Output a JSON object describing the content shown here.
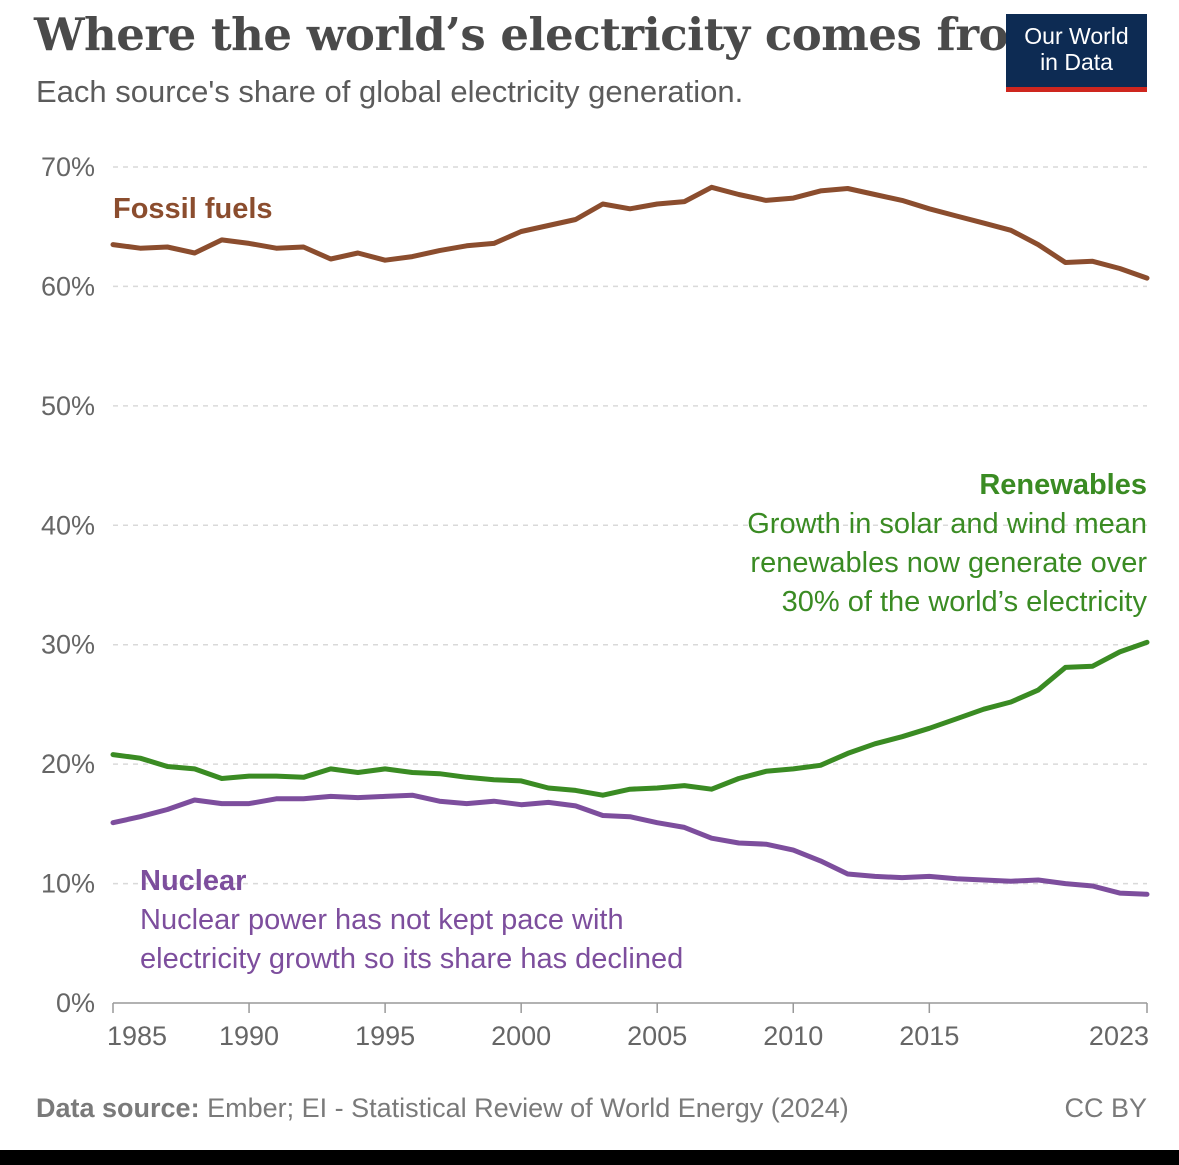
{
  "header": {
    "title": "Where the world’s electricity comes from",
    "subtitle": "Each source's share of global electricity generation."
  },
  "logo": {
    "line1": "Our World",
    "line2": "in Data",
    "bg_color": "#0d2b53",
    "accent_color": "#ce261e"
  },
  "footer": {
    "source_label": "Data source:",
    "source_text": " Ember; EI - Statistical Review of World Energy (2024)",
    "license": "CC BY"
  },
  "chart_data": {
    "type": "line",
    "x_start": 1985,
    "x_end": 2023,
    "ylim": [
      0,
      70
    ],
    "yticks": [
      0,
      10,
      20,
      30,
      40,
      50,
      60,
      70
    ],
    "ytick_labels": [
      "0%",
      "10%",
      "20%",
      "30%",
      "40%",
      "50%",
      "60%",
      "70%"
    ],
    "xticks": [
      1985,
      1990,
      1995,
      2000,
      2005,
      2010,
      2015,
      2023
    ],
    "xtick_labels": [
      "1985",
      "1990",
      "1995",
      "2000",
      "2005",
      "2010",
      "2015",
      "2023"
    ],
    "grid": "horizontal dashed",
    "series": [
      {
        "name": "Fossil fuels",
        "color": "#8b4d2e",
        "values": [
          63.5,
          63.2,
          63.3,
          62.8,
          63.9,
          63.6,
          63.2,
          63.3,
          62.3,
          62.8,
          62.2,
          62.5,
          63.0,
          63.4,
          63.6,
          64.6,
          65.1,
          65.6,
          66.9,
          66.5,
          66.9,
          67.1,
          68.3,
          67.7,
          67.2,
          67.4,
          68.0,
          68.2,
          67.7,
          67.2,
          66.5,
          65.9,
          65.3,
          64.7,
          63.5,
          62.0,
          62.1,
          61.5,
          60.7
        ]
      },
      {
        "name": "Renewables",
        "color": "#3a8b23",
        "values": [
          20.8,
          20.5,
          19.8,
          19.6,
          18.8,
          19.0,
          19.0,
          18.9,
          19.6,
          19.3,
          19.6,
          19.3,
          19.2,
          18.9,
          18.7,
          18.6,
          18.0,
          17.8,
          17.4,
          17.9,
          18.0,
          18.2,
          17.9,
          18.8,
          19.4,
          19.6,
          19.9,
          20.9,
          21.7,
          22.3,
          23.0,
          23.8,
          24.6,
          25.2,
          26.2,
          28.1,
          28.2,
          29.4,
          30.2
        ]
      },
      {
        "name": "Nuclear",
        "color": "#7d4e9d",
        "values": [
          15.1,
          15.6,
          16.2,
          17.0,
          16.7,
          16.7,
          17.1,
          17.1,
          17.3,
          17.2,
          17.3,
          17.4,
          16.9,
          16.7,
          16.9,
          16.6,
          16.8,
          16.5,
          15.7,
          15.6,
          15.1,
          14.7,
          13.8,
          13.4,
          13.3,
          12.8,
          11.9,
          10.8,
          10.6,
          10.5,
          10.6,
          10.4,
          10.3,
          10.2,
          10.3,
          10.0,
          9.8,
          9.2,
          9.1
        ]
      }
    ],
    "annotations": [
      {
        "series": "Fossil fuels",
        "title": "Fossil fuels",
        "lines": []
      },
      {
        "series": "Renewables",
        "title": "Renewables",
        "lines": [
          "Growth in solar and wind mean",
          "renewables now generate over",
          "30% of the world’s electricity"
        ]
      },
      {
        "series": "Nuclear",
        "title": "Nuclear",
        "lines": [
          "Nuclear power has not kept pace with",
          "electricity growth so its share has declined"
        ]
      }
    ]
  }
}
